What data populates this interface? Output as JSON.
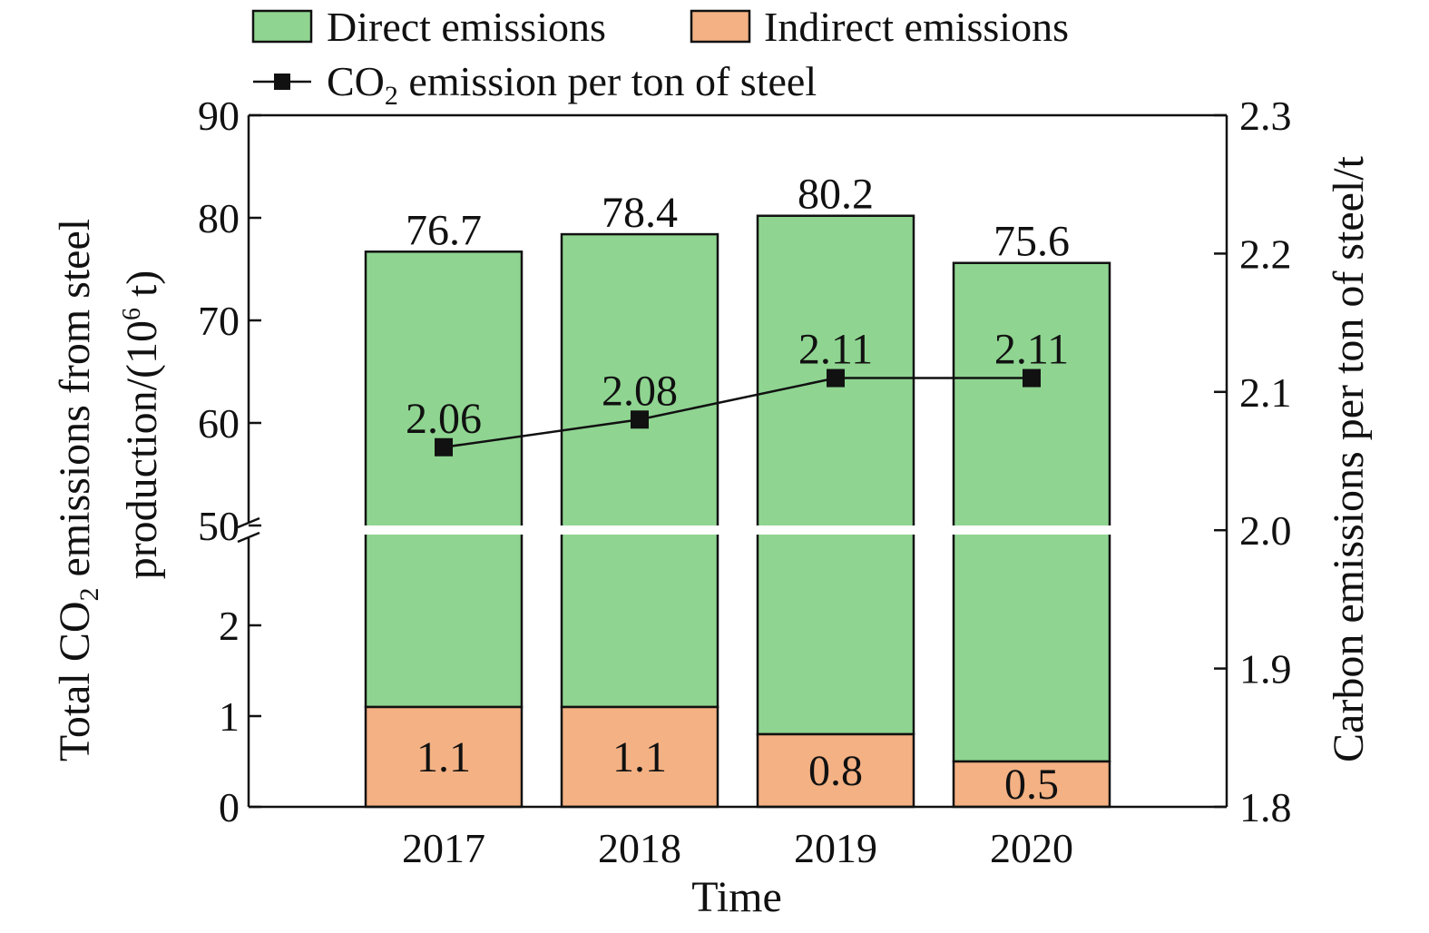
{
  "chart_data": {
    "type": "bar",
    "categories": [
      "2017",
      "2018",
      "2019",
      "2020"
    ],
    "series": [
      {
        "name": "Direct emissions",
        "type": "bar",
        "axis": "left",
        "color": "#8fd591",
        "values": [
          75.6,
          77.3,
          79.4,
          75.1
        ]
      },
      {
        "name": "Indirect emissions",
        "type": "bar",
        "axis": "left",
        "color": "#f4b183",
        "values": [
          1.1,
          1.1,
          0.8,
          0.5
        ]
      },
      {
        "name": "CO2 emission per ton of steel",
        "type": "line",
        "axis": "right",
        "color": "#111111",
        "marker": "square",
        "values": [
          2.06,
          2.08,
          2.11,
          2.11
        ]
      }
    ],
    "totals": [
      76.7,
      78.4,
      80.2,
      75.6
    ],
    "total_labels": [
      "76.7",
      "78.4",
      "80.2",
      "75.6"
    ],
    "indirect_labels": [
      "1.1",
      "1.1",
      "0.8",
      "0.5"
    ],
    "line_labels": [
      "2.06",
      "2.08",
      "2.11",
      "2.11"
    ],
    "xlabel": "Time",
    "ylabel_line1_pre": "Total CO",
    "ylabel_line1_sub": "2",
    "ylabel_line1_post": " emissions from steel",
    "ylabel_line2_pre": "production/(10",
    "ylabel_line2_sup": "6",
    "ylabel_line2_post": " t)",
    "y2label": "Carbon emissions per ton of steel/t",
    "y_lower_ticks": [
      "0",
      "1",
      "2"
    ],
    "y_upper_ticks": [
      "50",
      "60",
      "70",
      "80",
      "90"
    ],
    "y_lower_range": [
      0,
      3
    ],
    "y_upper_range": [
      50,
      90
    ],
    "y_break": "broken axis between 3 and 50",
    "y2_ticks": [
      "1.8",
      "1.9",
      "2.0",
      "2.1",
      "2.2",
      "2.3"
    ],
    "y2_range": [
      1.8,
      2.3
    ],
    "legend": {
      "direct": "Direct emissions",
      "indirect": "Indirect emissions",
      "line_pre": "CO",
      "line_sub": "2",
      "line_post": " emission per ton of steel",
      "placement": "top"
    },
    "colors": {
      "direct": "#8fd591",
      "indirect": "#f4b183",
      "line": "#111111"
    }
  }
}
